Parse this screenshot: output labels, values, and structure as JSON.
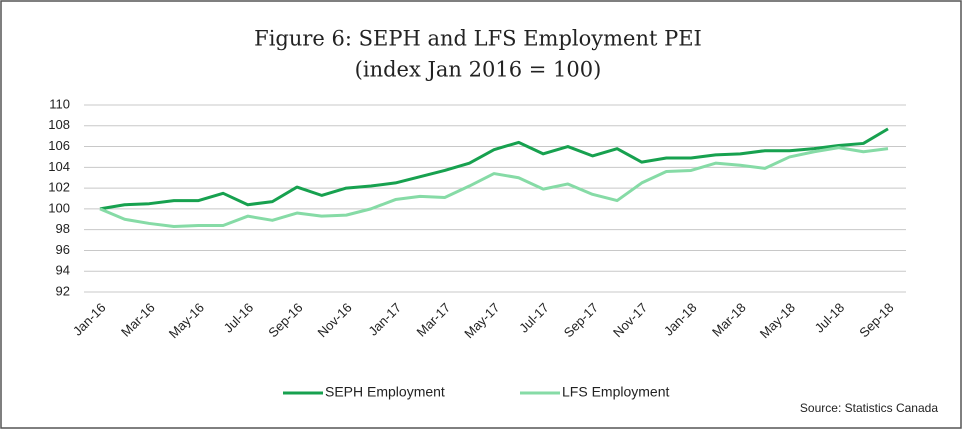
{
  "chart_data": {
    "type": "line",
    "title": "Figure 6: SEPH and LFS Employment PEI",
    "subtitle": "(index Jan 2016 = 100)",
    "source": "Source: Statistics Canada",
    "categories": [
      "Jan-16",
      null,
      "Mar-16",
      null,
      "May-16",
      null,
      "Jul-16",
      null,
      "Sep-16",
      null,
      "Nov-16",
      null,
      "Jan-17",
      null,
      "Mar-17",
      null,
      "May-17",
      null,
      "Jul-17",
      null,
      "Sep-17",
      null,
      "Nov-17",
      null,
      "Jan-18",
      null,
      "Mar-18",
      null,
      "May-18",
      null,
      "Jul-18",
      null,
      "Sep-18"
    ],
    "series": [
      {
        "name": "SEPH Employment",
        "color": "#17a14f",
        "values": [
          100,
          100.4,
          100.5,
          100.8,
          100.8,
          101.5,
          100.4,
          100.7,
          102.1,
          101.3,
          102.0,
          102.2,
          102.5,
          103.1,
          103.7,
          104.4,
          105.7,
          106.4,
          105.3,
          106.0,
          105.1,
          105.8,
          104.5,
          104.9,
          104.9,
          105.2,
          105.3,
          105.6,
          105.6,
          105.8,
          106.1,
          106.3,
          107.7
        ]
      },
      {
        "name": "LFS Employment",
        "color": "#86dba6",
        "values": [
          100,
          99.0,
          98.6,
          98.3,
          98.4,
          98.4,
          99.3,
          98.9,
          99.6,
          99.3,
          99.4,
          100.0,
          100.9,
          101.2,
          101.1,
          102.2,
          103.4,
          103.0,
          101.9,
          102.4,
          101.4,
          100.8,
          102.5,
          103.6,
          103.7,
          104.4,
          104.2,
          103.9,
          105.0,
          105.5,
          105.9,
          105.5,
          105.8
        ]
      }
    ],
    "ylim": [
      92,
      110
    ],
    "yticks": [
      92,
      94,
      96,
      98,
      100,
      102,
      104,
      106,
      108,
      110
    ],
    "grid": true,
    "legend": "bottom"
  }
}
